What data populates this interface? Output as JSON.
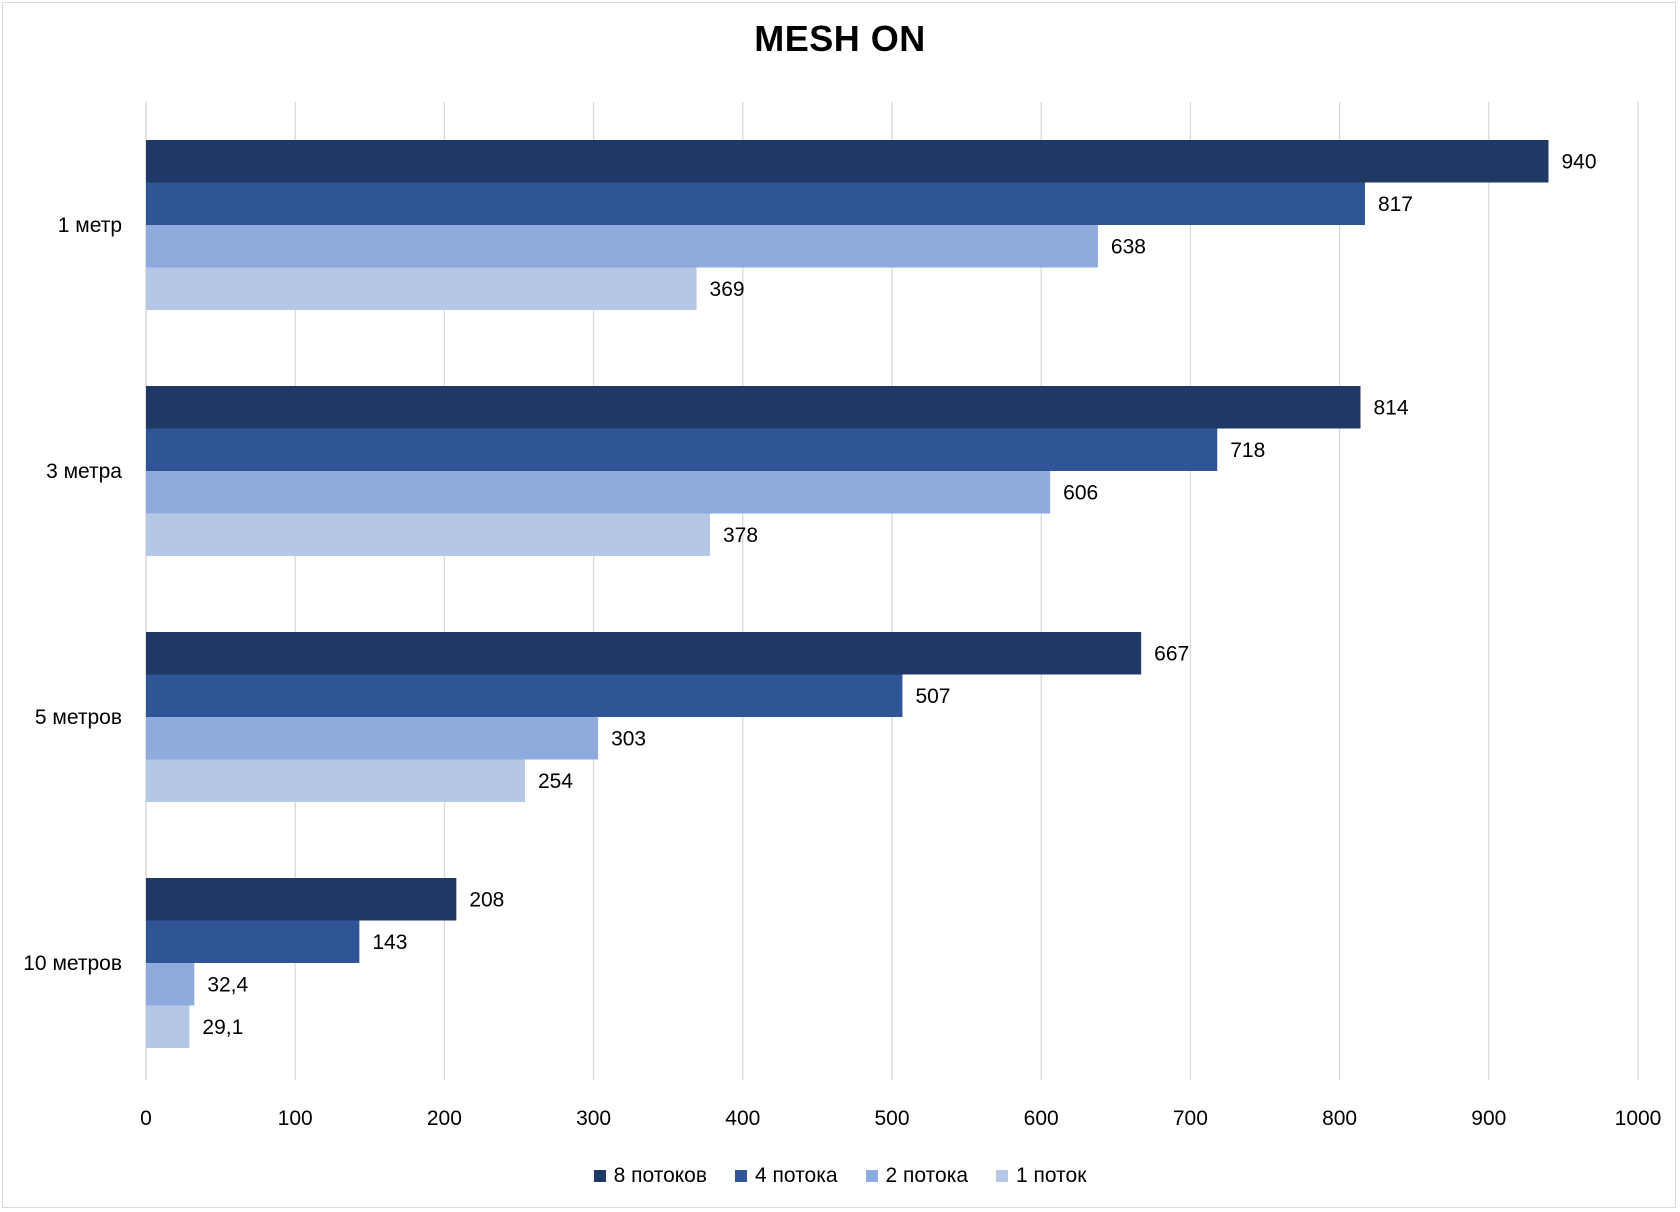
{
  "chart_data": {
    "type": "bar",
    "orientation": "horizontal",
    "title": "MESH ON",
    "xlabel": "",
    "ylabel": "",
    "xlim": [
      0,
      1000
    ],
    "xticks": [
      0,
      100,
      200,
      300,
      400,
      500,
      600,
      700,
      800,
      900,
      1000
    ],
    "grid": true,
    "legend_position": "bottom",
    "categories": [
      "1 метр",
      "3 метра",
      "5 метров",
      "10 метров"
    ],
    "series": [
      {
        "name": "8 потоков",
        "color": "#1f3864",
        "values": [
          940,
          814,
          667,
          208
        ],
        "labels": [
          "940",
          "814",
          "667",
          "208"
        ]
      },
      {
        "name": "4 потока",
        "color": "#2f5597",
        "values": [
          817,
          718,
          507,
          143
        ],
        "labels": [
          "817",
          "718",
          "507",
          "143"
        ]
      },
      {
        "name": "2 потока",
        "color": "#8faadc",
        "values": [
          638,
          606,
          303,
          32.4
        ],
        "labels": [
          "638",
          "606",
          "303",
          "32,4"
        ]
      },
      {
        "name": "1 поток",
        "color": "#b4c7e7",
        "values": [
          369,
          378,
          254,
          29.1
        ],
        "labels": [
          "369",
          "378",
          "254",
          "29,1"
        ]
      }
    ]
  }
}
